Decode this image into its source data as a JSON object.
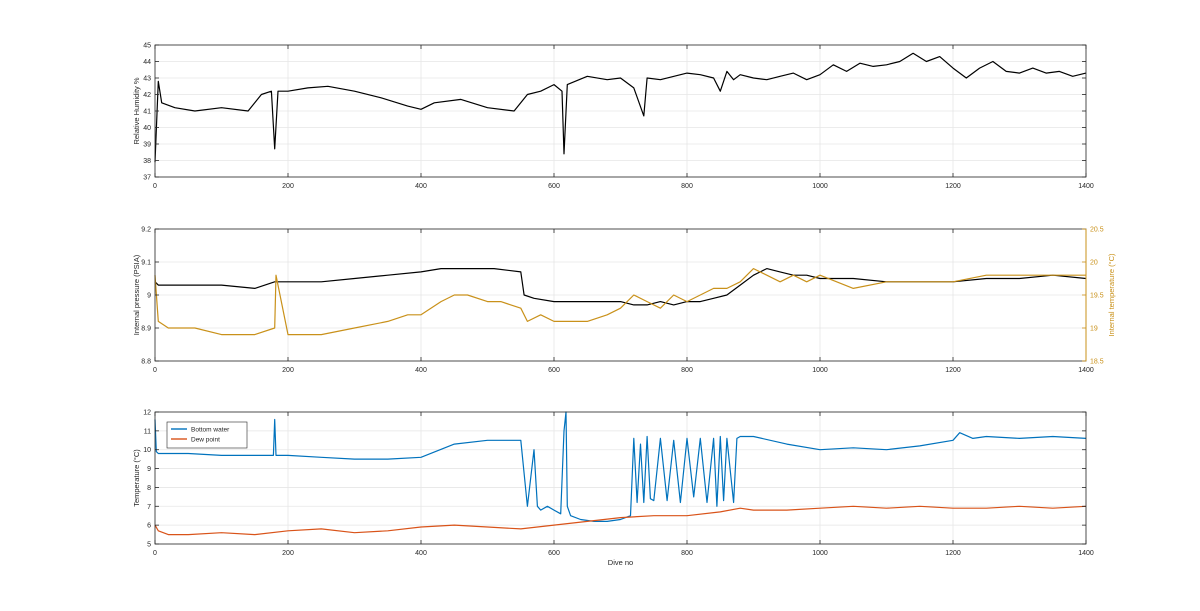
{
  "chart_data": [
    {
      "type": "line",
      "title": "",
      "xlabel": "",
      "ylabel": "Relative Humidity %",
      "xlim": [
        0,
        1400
      ],
      "ylim": [
        37,
        45
      ],
      "xticks": [
        0,
        200,
        400,
        600,
        800,
        1000,
        1200,
        1400
      ],
      "yticks": [
        37,
        38,
        39,
        40,
        41,
        42,
        43,
        44,
        45
      ],
      "xtick_labels": [
        "0",
        "200",
        "400",
        "600",
        "800",
        "1000",
        "1200",
        "1400"
      ],
      "ytick_labels": [
        "37",
        "38",
        "39",
        "40",
        "41",
        "42",
        "43",
        "44",
        "45"
      ],
      "grid": true,
      "series": [
        {
          "name": "",
          "color": "#000000",
          "x": [
            0,
            5,
            10,
            30,
            60,
            100,
            140,
            160,
            175,
            180,
            185,
            200,
            230,
            260,
            300,
            340,
            380,
            400,
            420,
            460,
            500,
            540,
            560,
            580,
            600,
            612,
            615,
            620,
            650,
            680,
            700,
            720,
            735,
            740,
            760,
            800,
            820,
            840,
            850,
            860,
            870,
            880,
            900,
            920,
            940,
            960,
            980,
            1000,
            1020,
            1040,
            1060,
            1080,
            1100,
            1120,
            1140,
            1160,
            1180,
            1200,
            1220,
            1240,
            1260,
            1280,
            1300,
            1320,
            1340,
            1360,
            1380,
            1400
          ],
          "y": [
            37.9,
            42.8,
            41.5,
            41.2,
            41.0,
            41.2,
            41.0,
            42.0,
            42.2,
            38.7,
            42.2,
            42.2,
            42.4,
            42.5,
            42.2,
            41.8,
            41.3,
            41.1,
            41.5,
            41.7,
            41.2,
            41.0,
            42.0,
            42.2,
            42.6,
            42.2,
            38.4,
            42.6,
            43.1,
            42.9,
            43.0,
            42.4,
            40.7,
            43.0,
            42.9,
            43.3,
            43.2,
            43.0,
            42.2,
            43.4,
            42.9,
            43.2,
            43.0,
            42.9,
            43.1,
            43.3,
            42.9,
            43.2,
            43.8,
            43.4,
            43.9,
            43.7,
            43.8,
            44.0,
            44.5,
            44.0,
            44.3,
            43.6,
            43.0,
            43.6,
            44.0,
            43.4,
            43.3,
            43.6,
            43.3,
            43.4,
            43.1,
            43.3
          ]
        }
      ]
    },
    {
      "type": "line",
      "title": "",
      "xlabel": "",
      "ylabel": "Internal pressure (PSIA)",
      "ylabel_right": "Internal temperature (°C)",
      "xlim": [
        0,
        1400
      ],
      "ylim": [
        8.8,
        9.2
      ],
      "ylim_right": [
        18.5,
        20.5
      ],
      "xticks": [
        0,
        200,
        400,
        600,
        800,
        1000,
        1200,
        1400
      ],
      "yticks": [
        8.8,
        8.9,
        9,
        9.1,
        9.2
      ],
      "yticks_right": [
        18.5,
        19,
        19.5,
        20,
        20.5
      ],
      "xtick_labels": [
        "0",
        "200",
        "400",
        "600",
        "800",
        "1000",
        "1200",
        "1400"
      ],
      "ytick_labels": [
        "8.8",
        "8.9",
        "9",
        "9.1",
        "9.2"
      ],
      "ytick_labels_right": [
        "18.5",
        "19",
        "19.5",
        "20",
        "20.5"
      ],
      "grid": true,
      "series": [
        {
          "name": "",
          "axis": "left",
          "color": "#000000",
          "x": [
            0,
            5,
            20,
            60,
            100,
            150,
            180,
            200,
            250,
            300,
            350,
            400,
            430,
            470,
            510,
            550,
            555,
            570,
            600,
            640,
            680,
            700,
            720,
            740,
            760,
            780,
            800,
            820,
            840,
            860,
            880,
            900,
            920,
            940,
            960,
            980,
            1000,
            1050,
            1100,
            1150,
            1200,
            1250,
            1300,
            1350,
            1400
          ],
          "y": [
            9.04,
            9.03,
            9.03,
            9.03,
            9.03,
            9.02,
            9.04,
            9.04,
            9.04,
            9.05,
            9.06,
            9.07,
            9.08,
            9.08,
            9.08,
            9.07,
            9.0,
            8.99,
            8.98,
            8.98,
            8.98,
            8.98,
            8.97,
            8.97,
            8.98,
            8.97,
            8.98,
            8.98,
            8.99,
            9.0,
            9.03,
            9.06,
            9.08,
            9.07,
            9.06,
            9.06,
            9.05,
            9.05,
            9.04,
            9.04,
            9.04,
            9.05,
            9.05,
            9.06,
            9.05
          ]
        },
        {
          "name": "",
          "axis": "right",
          "color": "#C9911A",
          "x": [
            0,
            5,
            20,
            60,
            100,
            150,
            180,
            182,
            200,
            250,
            300,
            350,
            380,
            400,
            430,
            450,
            470,
            500,
            520,
            550,
            560,
            580,
            600,
            620,
            650,
            680,
            700,
            720,
            740,
            760,
            780,
            800,
            820,
            840,
            860,
            880,
            900,
            920,
            940,
            960,
            980,
            1000,
            1050,
            1100,
            1150,
            1200,
            1250,
            1300,
            1350,
            1400
          ],
          "y": [
            19.8,
            19.1,
            19.0,
            19.0,
            18.9,
            18.9,
            19.0,
            19.8,
            18.9,
            18.9,
            19.0,
            19.1,
            19.2,
            19.2,
            19.4,
            19.5,
            19.5,
            19.4,
            19.4,
            19.3,
            19.1,
            19.2,
            19.1,
            19.1,
            19.1,
            19.2,
            19.3,
            19.5,
            19.4,
            19.3,
            19.5,
            19.4,
            19.5,
            19.6,
            19.6,
            19.7,
            19.9,
            19.8,
            19.7,
            19.8,
            19.7,
            19.8,
            19.6,
            19.7,
            19.7,
            19.7,
            19.8,
            19.8,
            19.8,
            19.8
          ]
        }
      ]
    },
    {
      "type": "line",
      "title": "",
      "xlabel": "Dive no",
      "ylabel": "Temperature (°C)",
      "xlim": [
        0,
        1400
      ],
      "ylim": [
        5,
        12
      ],
      "xticks": [
        0,
        200,
        400,
        600,
        800,
        1000,
        1200,
        1400
      ],
      "yticks": [
        5,
        6,
        7,
        8,
        9,
        10,
        11,
        12
      ],
      "xtick_labels": [
        "0",
        "200",
        "400",
        "600",
        "800",
        "1000",
        "1200",
        "1400"
      ],
      "ytick_labels": [
        "5",
        "6",
        "7",
        "8",
        "9",
        "10",
        "11",
        "12"
      ],
      "grid": true,
      "legend": "top-left",
      "series": [
        {
          "name": "Bottom water",
          "color": "#0072BD",
          "x": [
            0,
            2,
            5,
            10,
            50,
            100,
            150,
            178,
            180,
            182,
            200,
            250,
            300,
            350,
            400,
            450,
            500,
            550,
            560,
            570,
            575,
            580,
            590,
            600,
            610,
            615,
            618,
            620,
            625,
            640,
            660,
            680,
            700,
            715,
            720,
            725,
            730,
            735,
            740,
            745,
            750,
            760,
            770,
            780,
            790,
            800,
            810,
            820,
            830,
            840,
            845,
            850,
            855,
            860,
            870,
            875,
            880,
            900,
            950,
            1000,
            1050,
            1100,
            1150,
            1200,
            1210,
            1230,
            1250,
            1300,
            1350,
            1400
          ],
          "y": [
            11.6,
            9.9,
            9.8,
            9.8,
            9.8,
            9.7,
            9.7,
            9.7,
            11.6,
            9.7,
            9.7,
            9.6,
            9.5,
            9.5,
            9.6,
            10.3,
            10.5,
            10.5,
            7.0,
            10.0,
            7.0,
            6.8,
            7.0,
            6.8,
            6.6,
            11.0,
            12.0,
            7.0,
            6.5,
            6.3,
            6.2,
            6.2,
            6.3,
            6.5,
            10.6,
            7.2,
            10.3,
            7.2,
            10.7,
            7.4,
            7.3,
            10.6,
            7.3,
            10.5,
            7.2,
            10.6,
            7.5,
            10.6,
            7.2,
            10.6,
            7.0,
            10.7,
            7.3,
            10.6,
            7.2,
            10.6,
            10.7,
            10.7,
            10.3,
            10.0,
            10.1,
            10.0,
            10.2,
            10.5,
            10.9,
            10.6,
            10.7,
            10.6,
            10.7,
            10.6
          ]
        },
        {
          "name": "Dew point",
          "color": "#D95319",
          "x": [
            0,
            5,
            20,
            50,
            100,
            150,
            200,
            250,
            300,
            350,
            400,
            450,
            500,
            550,
            600,
            650,
            700,
            750,
            800,
            850,
            880,
            900,
            950,
            1000,
            1050,
            1100,
            1150,
            1200,
            1250,
            1300,
            1350,
            1400
          ],
          "y": [
            6.0,
            5.7,
            5.5,
            5.5,
            5.6,
            5.5,
            5.7,
            5.8,
            5.6,
            5.7,
            5.9,
            6.0,
            5.9,
            5.8,
            6.0,
            6.2,
            6.4,
            6.5,
            6.5,
            6.7,
            6.9,
            6.8,
            6.8,
            6.9,
            7.0,
            6.9,
            7.0,
            6.9,
            6.9,
            7.0,
            6.9,
            7.0
          ]
        }
      ]
    }
  ]
}
